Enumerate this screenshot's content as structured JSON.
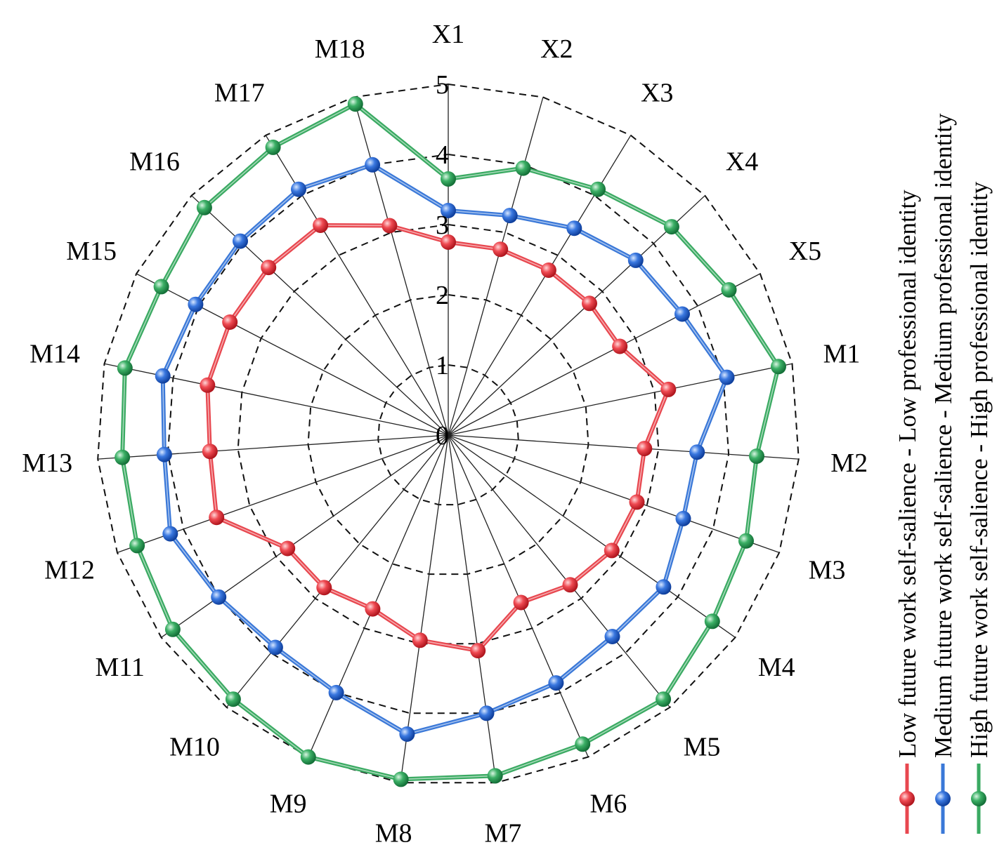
{
  "chart_data": {
    "type": "radar",
    "axes": [
      "X1",
      "X2",
      "X3",
      "X4",
      "X5",
      "M1",
      "M2",
      "M3",
      "M4",
      "M5",
      "M6",
      "M7",
      "M8",
      "M9",
      "M10",
      "M11",
      "M12",
      "M13",
      "M14",
      "M15",
      "M16",
      "M17",
      "M18"
    ],
    "rlim": [
      0,
      5
    ],
    "rticks": [
      "0",
      "1",
      "2",
      "3",
      "4",
      "5"
    ],
    "grid": "dashed concentric polygons",
    "legend_position": "right, rotated vertical",
    "series": [
      {
        "name": "Low future work self-salience - Low professional identity",
        "color": "#e8474f",
        "values": [
          2.75,
          2.75,
          2.75,
          2.75,
          2.75,
          3.2,
          2.8,
          2.85,
          2.85,
          2.75,
          2.6,
          3.1,
          2.95,
          2.7,
          2.8,
          2.8,
          3.5,
          3.4,
          3.5,
          3.5,
          3.5,
          3.5,
          3.1
        ]
      },
      {
        "name": "Medium future work self-salience - Medium professional identity",
        "color": "#3a78d8",
        "values": [
          3.2,
          3.25,
          3.45,
          3.65,
          3.75,
          4.05,
          3.55,
          3.55,
          3.75,
          3.7,
          3.85,
          4.0,
          4.3,
          4.0,
          3.9,
          4.0,
          4.2,
          4.05,
          4.15,
          4.05,
          4.05,
          4.1,
          4.0
        ]
      },
      {
        "name": "High future work self-salience - High professional identity",
        "color": "#3aaa62",
        "values": [
          3.65,
          3.95,
          4.1,
          4.35,
          4.5,
          4.8,
          4.4,
          4.5,
          4.6,
          4.85,
          4.8,
          4.9,
          4.95,
          5.0,
          4.85,
          4.8,
          4.7,
          4.65,
          4.7,
          4.6,
          4.75,
          4.8,
          4.9
        ]
      }
    ]
  }
}
